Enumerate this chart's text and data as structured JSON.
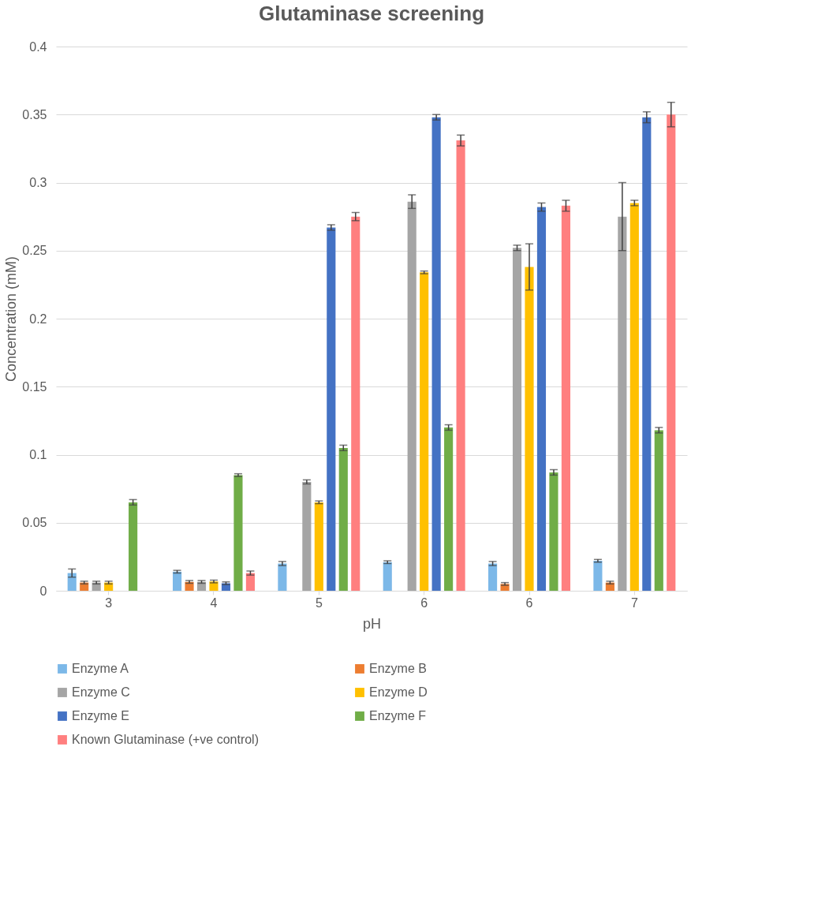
{
  "chart_data": {
    "type": "bar",
    "title": "Glutaminase screening",
    "xlabel": "pH",
    "ylabel": "Concentration (mM)",
    "categories": [
      "3",
      "4",
      "5",
      "6",
      "6",
      "7"
    ],
    "series": [
      {
        "name": "Enzyme A",
        "color": "#7cb8e8",
        "values": [
          0.013,
          0.014,
          0.02,
          0.021,
          0.02,
          0.022
        ],
        "errors": [
          0.003,
          0.001,
          0.0015,
          0.001,
          0.0015,
          0.001
        ]
      },
      {
        "name": "Enzyme B",
        "color": "#ed7d31",
        "values": [
          0.006,
          0.0065,
          0,
          0,
          0.005,
          0.006
        ],
        "errors": [
          0.001,
          0.001,
          null,
          null,
          0.001,
          0.001
        ]
      },
      {
        "name": "Enzyme C",
        "color": "#a5a5a5",
        "values": [
          0.006,
          0.0065,
          0.08,
          0.286,
          0.252,
          0.275
        ],
        "errors": [
          0.001,
          0.001,
          0.0015,
          0.005,
          0.002,
          0.025
        ]
      },
      {
        "name": "Enzyme D",
        "color": "#ffc000",
        "values": [
          0.006,
          0.0068,
          0.065,
          0.234,
          0.238,
          0.285
        ],
        "errors": [
          0.001,
          0.001,
          0.001,
          0.001,
          0.017,
          0.002
        ]
      },
      {
        "name": "Enzyme E",
        "color": "#4472c4",
        "values": [
          0,
          0.0055,
          0.267,
          0.348,
          0.282,
          0.348
        ],
        "errors": [
          null,
          0.001,
          0.002,
          0.002,
          0.003,
          0.004
        ]
      },
      {
        "name": "Enzyme F",
        "color": "#70ad47",
        "values": [
          0.065,
          0.085,
          0.105,
          0.12,
          0.087,
          0.118
        ],
        "errors": [
          0.002,
          0.001,
          0.002,
          0.002,
          0.002,
          0.002
        ]
      },
      {
        "name": "Known Glutaminase (+ve control)",
        "color": "#ff7f7f",
        "values": [
          0,
          0.013,
          0.275,
          0.331,
          0.283,
          0.35
        ],
        "errors": [
          null,
          0.0015,
          0.003,
          0.004,
          0.004,
          0.009
        ]
      }
    ],
    "ylim": [
      0,
      0.4
    ],
    "yticks": [
      0,
      0.05,
      0.1,
      0.15,
      0.2,
      0.25,
      0.3,
      0.35,
      0.4
    ],
    "grid": "y",
    "legend": "bottom"
  }
}
